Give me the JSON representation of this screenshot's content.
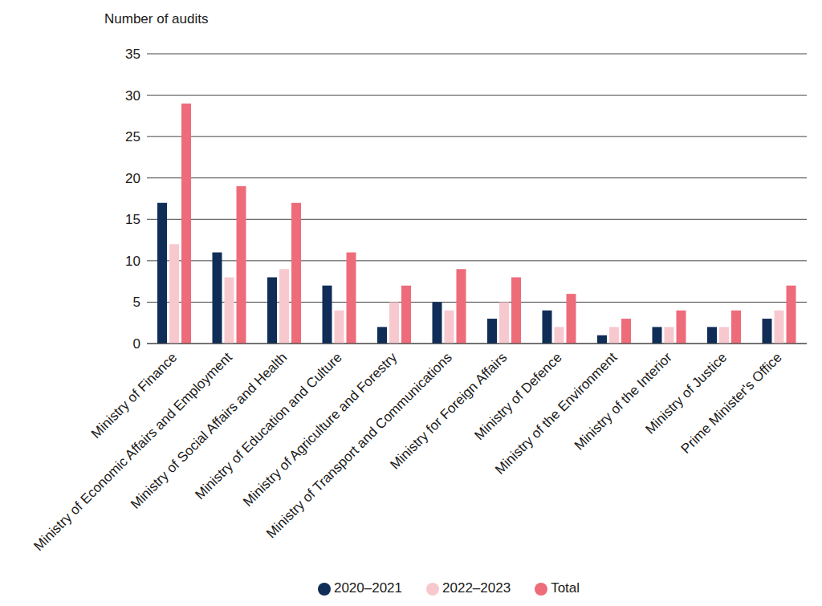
{
  "chart_data": {
    "type": "bar",
    "y_label": "Number of audits",
    "categories": [
      "Ministry of Finance",
      "Ministry of Economic Affairs and Employment",
      "Ministry of Social Affairs and Health",
      "Ministry of Education and Culture",
      "Ministry of Agriculture and Forestry",
      "Ministry of Transport and Communications",
      "Ministry for Foreign Affairs",
      "Ministry of Defence",
      "Ministry of the Environment",
      "Ministry of the Interior",
      "Ministry of Justice",
      "Prime Minister's Office"
    ],
    "series": [
      {
        "name": "2020–2021",
        "color": "#0f2d57",
        "values": [
          17,
          11,
          8,
          7,
          2,
          5,
          3,
          4,
          1,
          2,
          2,
          3
        ]
      },
      {
        "name": "2022–2023",
        "color": "#f7c9cf",
        "values": [
          12,
          8,
          9,
          4,
          5,
          4,
          5,
          2,
          2,
          2,
          2,
          4
        ]
      },
      {
        "name": "Total",
        "color": "#ee6b7a",
        "values": [
          29,
          19,
          17,
          11,
          7,
          9,
          8,
          6,
          3,
          4,
          4,
          7
        ]
      }
    ],
    "ylim": [
      0,
      35
    ],
    "yticks": [
      0,
      5,
      10,
      15,
      20,
      25,
      30,
      35
    ],
    "grid": true,
    "legend": "bottom"
  }
}
